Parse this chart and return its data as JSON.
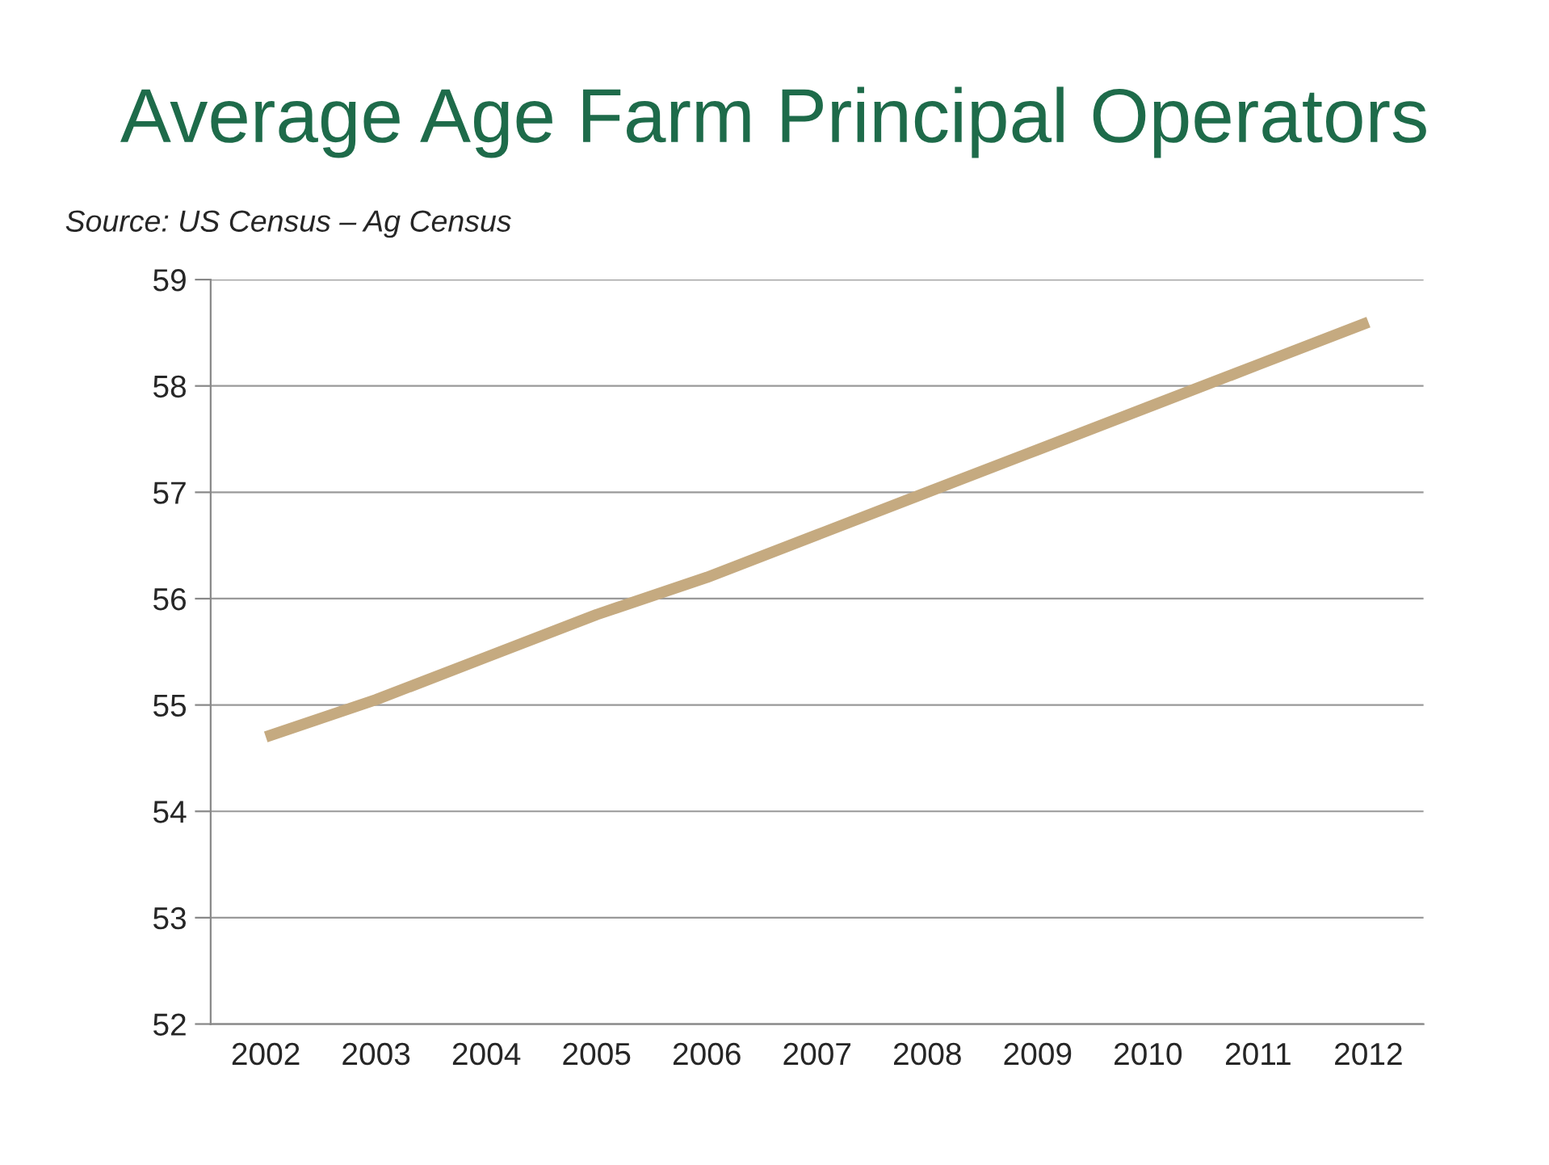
{
  "chart_data": {
    "type": "line",
    "title": "Average Age Farm Principal Operators",
    "annotations": [
      "Source: US Census – Ag Census"
    ],
    "categories": [
      "2002",
      "2003",
      "2004",
      "2005",
      "2006",
      "2007",
      "2008",
      "2009",
      "2010",
      "2011",
      "2012"
    ],
    "series": [
      {
        "color": "#c5aa80",
        "values": [
          54.7,
          55.05,
          55.45,
          55.85,
          56.2,
          56.6,
          57.0,
          57.4,
          57.8,
          58.2,
          58.6
        ]
      }
    ],
    "ylim": [
      52,
      59
    ],
    "yticks": [
      52,
      53,
      54,
      55,
      56,
      57,
      58,
      59
    ],
    "grid": "y",
    "legend": false,
    "marker": "none",
    "line_style": "solid"
  }
}
